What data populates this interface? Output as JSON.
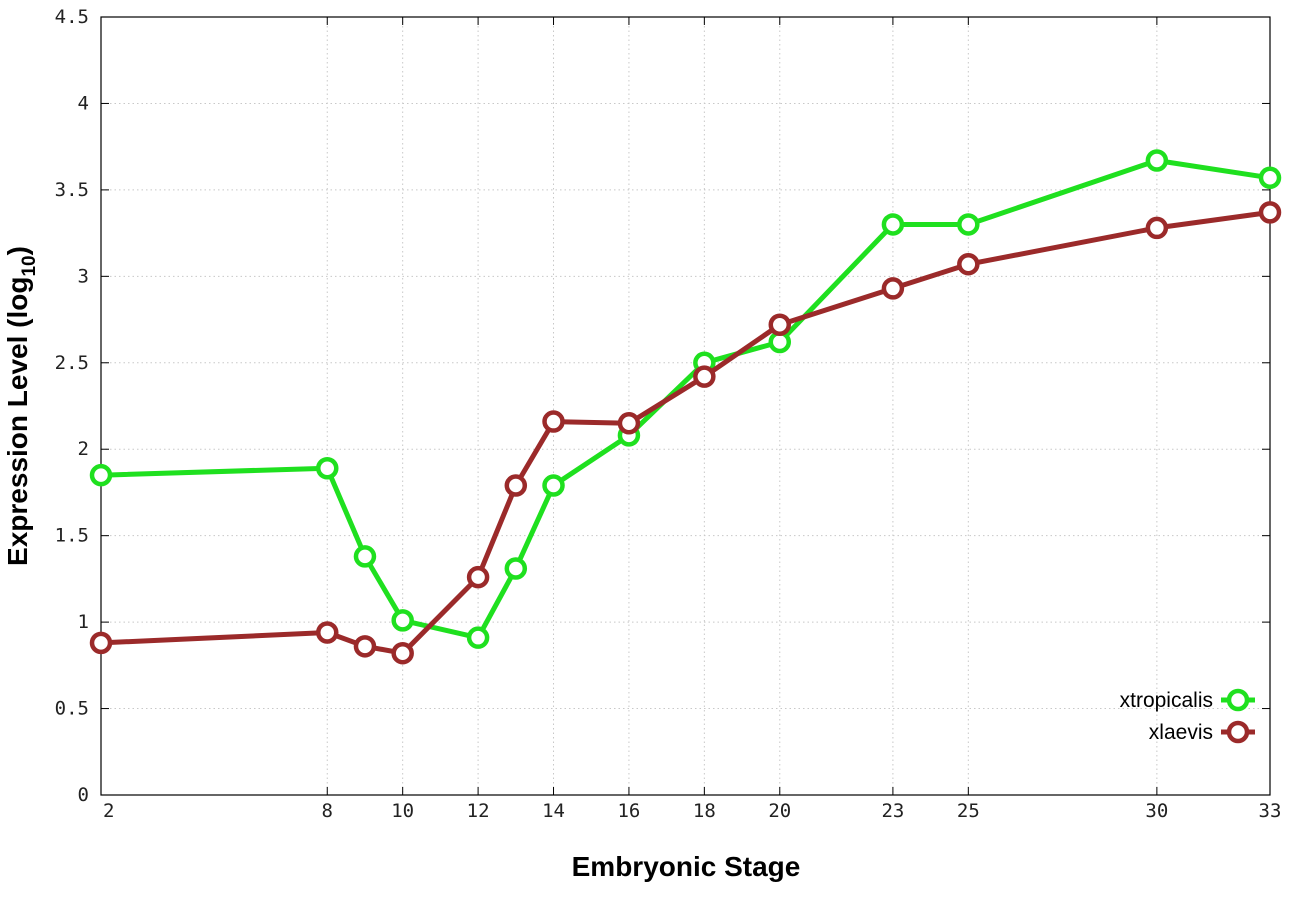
{
  "chart_data": {
    "type": "line",
    "xlabel": "Embryonic Stage",
    "ylabel": {
      "main": "Expression Level (log",
      "sub": "10",
      "close": ")"
    },
    "x": [
      2,
      8,
      9,
      10,
      12,
      13,
      14,
      16,
      18,
      20,
      23,
      25,
      30,
      33
    ],
    "x_tick_labels": [
      "2",
      "8",
      "10",
      "12",
      "14",
      "16",
      "18",
      "20",
      "23",
      "25",
      "30",
      "33"
    ],
    "xlim": [
      2,
      33
    ],
    "ylim": [
      0,
      4.5
    ],
    "y_ticks": [
      0,
      0.5,
      1,
      1.5,
      2,
      2.5,
      3,
      3.5,
      4,
      4.5
    ],
    "y_tick_labels": [
      "0",
      "0.5",
      "1",
      "1.5",
      "2",
      "2.5",
      "3",
      "3.5",
      "4",
      "4.5"
    ],
    "grid": true,
    "legend_position": "bottom-right",
    "series": [
      {
        "name": "xtropicalis",
        "color": "#1fe01f",
        "values": [
          1.85,
          1.89,
          1.38,
          1.01,
          0.91,
          1.31,
          1.79,
          2.08,
          2.5,
          2.62,
          3.3,
          3.3,
          3.67,
          3.57
        ]
      },
      {
        "name": "xlaevis",
        "color": "#9b2a2a",
        "values": [
          0.88,
          0.94,
          0.86,
          0.82,
          1.26,
          1.79,
          2.16,
          2.15,
          2.42,
          2.72,
          2.93,
          3.07,
          3.28,
          3.37
        ]
      }
    ]
  }
}
